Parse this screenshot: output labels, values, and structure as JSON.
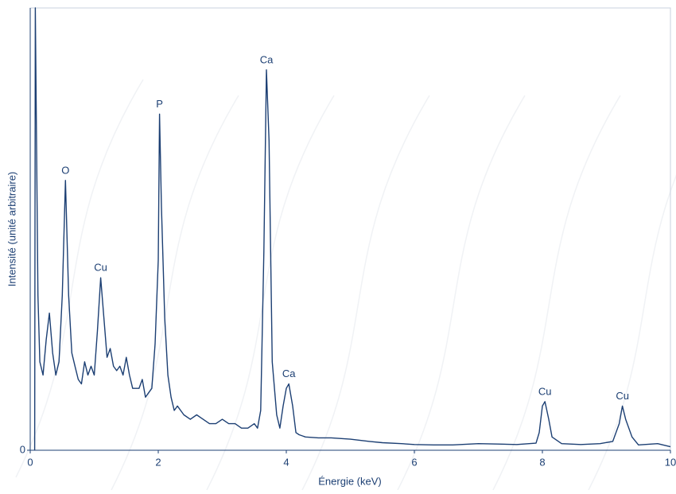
{
  "chart_data": {
    "type": "line",
    "x_label": "Énergie (keV)",
    "y_label": "Intensité (unité arbitraire)",
    "color": "#1c3f73",
    "x": [
      0.07,
      0.08,
      0.12,
      0.15,
      0.2,
      0.25,
      0.3,
      0.35,
      0.4,
      0.45,
      0.5,
      0.55,
      0.6,
      0.65,
      0.7,
      0.75,
      0.8,
      0.85,
      0.9,
      0.95,
      1.0,
      1.05,
      1.1,
      1.15,
      1.2,
      1.25,
      1.3,
      1.35,
      1.4,
      1.45,
      1.5,
      1.55,
      1.6,
      1.7,
      1.75,
      1.8,
      1.85,
      1.9,
      1.95,
      2.0,
      2.02,
      2.05,
      2.1,
      2.15,
      2.2,
      2.25,
      2.3,
      2.4,
      2.5,
      2.6,
      2.7,
      2.8,
      2.9,
      3.0,
      3.1,
      3.2,
      3.3,
      3.4,
      3.5,
      3.55,
      3.6,
      3.65,
      3.69,
      3.73,
      3.78,
      3.85,
      3.9,
      3.95,
      4.0,
      4.04,
      4.1,
      4.15,
      4.2,
      4.3,
      4.5,
      4.7,
      5.0,
      5.3,
      5.5,
      5.8,
      6.0,
      6.3,
      6.6,
      7.0,
      7.3,
      7.6,
      7.9,
      7.95,
      8.0,
      8.04,
      8.1,
      8.15,
      8.3,
      8.6,
      8.9,
      9.1,
      9.2,
      9.25,
      9.3,
      9.4,
      9.5,
      9.8,
      10.0
    ],
    "values": [
      0,
      100,
      35,
      20,
      17,
      25,
      31,
      22,
      17,
      20,
      35,
      61,
      35,
      22,
      19,
      16,
      15,
      20,
      17,
      19,
      17,
      27,
      39,
      30,
      21,
      23,
      19,
      18,
      19,
      17,
      21,
      17,
      14,
      14,
      16,
      12,
      13,
      14,
      24,
      43,
      76,
      55,
      30,
      17,
      12,
      9,
      10,
      8,
      7,
      8,
      7,
      6,
      6,
      7,
      6,
      6,
      5,
      5,
      6,
      5,
      9,
      45,
      86,
      70,
      20,
      8,
      5,
      10,
      14,
      15,
      10,
      4,
      3.5,
      3,
      2.8,
      2.8,
      2.5,
      2,
      1.7,
      1.5,
      1.3,
      1.2,
      1.2,
      1.5,
      1.4,
      1.3,
      1.6,
      4,
      10,
      11,
      7,
      3,
      1.5,
      1.3,
      1.5,
      2,
      6,
      10,
      7,
      3,
      1.2,
      1.5,
      0.8
    ],
    "annotations": [
      {
        "text": "O",
        "x": 0.55
      },
      {
        "text": "Cu",
        "x": 1.1
      },
      {
        "text": "P",
        "x": 2.02
      },
      {
        "text": "Ca",
        "x": 3.69
      },
      {
        "text": "Ca",
        "x": 4.04
      },
      {
        "text": "Cu",
        "x": 8.04
      },
      {
        "text": "Cu",
        "x": 9.25
      }
    ],
    "xlim": [
      0,
      10
    ],
    "xticks": [
      0,
      2,
      4,
      6,
      8,
      10
    ],
    "ylim": [
      0,
      100
    ],
    "yticks": [
      0
    ]
  }
}
